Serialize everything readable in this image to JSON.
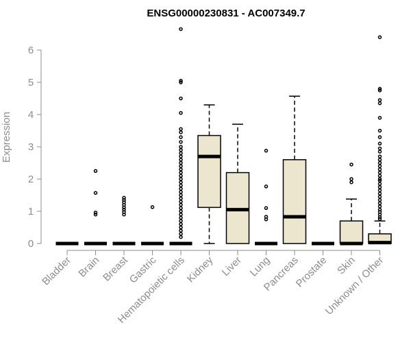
{
  "chart_data": {
    "type": "box",
    "title": "ENSG00000230831 - AC007349.7",
    "ylabel": "Expression",
    "xlabel": "",
    "ylim": [
      0,
      6.6
    ],
    "yticks": [
      "0",
      "1",
      "2",
      "3",
      "4",
      "5",
      "6"
    ],
    "box_color": "#ede6cf",
    "categories": [
      {
        "name": "Bladder",
        "q1": 0,
        "median": 0,
        "q3": 0,
        "whisker_low": 0,
        "whisker_high": 0,
        "outliers": []
      },
      {
        "name": "Brain",
        "q1": 0,
        "median": 0,
        "q3": 0,
        "whisker_low": 0,
        "whisker_high": 0,
        "outliers": [
          2.25,
          1.57,
          0.96,
          0.9
        ]
      },
      {
        "name": "Breast",
        "q1": 0,
        "median": 0,
        "q3": 0,
        "whisker_low": 0,
        "whisker_high": 0,
        "outliers": [
          1.42,
          1.35,
          1.28,
          1.2,
          1.12,
          1.05,
          0.98,
          0.9
        ]
      },
      {
        "name": "Gastric",
        "q1": 0,
        "median": 0,
        "q3": 0,
        "whisker_low": 0,
        "whisker_high": 0,
        "outliers": [
          1.13
        ]
      },
      {
        "name": "Hematopoietic cells",
        "q1": 0,
        "median": 0,
        "q3": 0,
        "whisker_low": 0,
        "whisker_high": 0,
        "outliers": [
          6.65,
          5.05,
          5.0,
          4.5,
          4.05,
          3.55,
          3.45,
          3.3,
          3.15,
          3.0,
          2.9,
          2.8,
          2.7,
          2.6,
          2.5,
          2.4,
          2.3,
          2.2,
          2.1,
          2.0,
          1.9,
          1.8,
          1.7,
          1.6,
          1.5,
          1.4,
          1.3,
          1.2,
          1.1,
          1.0,
          0.9,
          0.8,
          0.7,
          0.6,
          0.5,
          0.4,
          0.3,
          0.2
        ]
      },
      {
        "name": "Kidney",
        "q1": 1.12,
        "median": 2.7,
        "q3": 3.35,
        "whisker_low": 0,
        "whisker_high": 4.3,
        "outliers": []
      },
      {
        "name": "Liver",
        "q1": 0,
        "median": 1.05,
        "q3": 2.2,
        "whisker_low": 0,
        "whisker_high": 3.7,
        "outliers": []
      },
      {
        "name": "Lung",
        "q1": 0,
        "median": 0,
        "q3": 0,
        "whisker_low": 0,
        "whisker_high": 0,
        "outliers": [
          2.88,
          1.77,
          1.1,
          0.83,
          0.75
        ]
      },
      {
        "name": "Pancreas",
        "q1": 0,
        "median": 0.83,
        "q3": 2.6,
        "whisker_low": 0,
        "whisker_high": 4.57,
        "outliers": []
      },
      {
        "name": "Prostate",
        "q1": 0,
        "median": 0,
        "q3": 0,
        "whisker_low": 0,
        "whisker_high": 0,
        "outliers": []
      },
      {
        "name": "Skin",
        "q1": 0,
        "median": 0,
        "q3": 0.7,
        "whisker_low": 0,
        "whisker_high": 1.38,
        "outliers": [
          2.45,
          2.0,
          1.9
        ]
      },
      {
        "name": "Unknown / Other",
        "q1": 0,
        "median": 0.03,
        "q3": 0.3,
        "whisker_low": 0,
        "whisker_high": 0.7,
        "outliers": [
          6.4,
          4.8,
          4.75,
          4.45,
          4.35,
          3.9,
          3.5,
          3.3,
          3.1,
          2.95,
          2.85,
          2.7,
          2.6,
          2.5,
          2.4,
          2.3,
          2.2,
          2.1,
          2.0,
          1.95,
          1.85,
          1.75,
          1.65,
          1.55,
          1.45,
          1.35,
          1.25,
          1.15,
          1.05,
          0.98,
          0.9,
          0.82,
          0.76
        ]
      }
    ]
  }
}
